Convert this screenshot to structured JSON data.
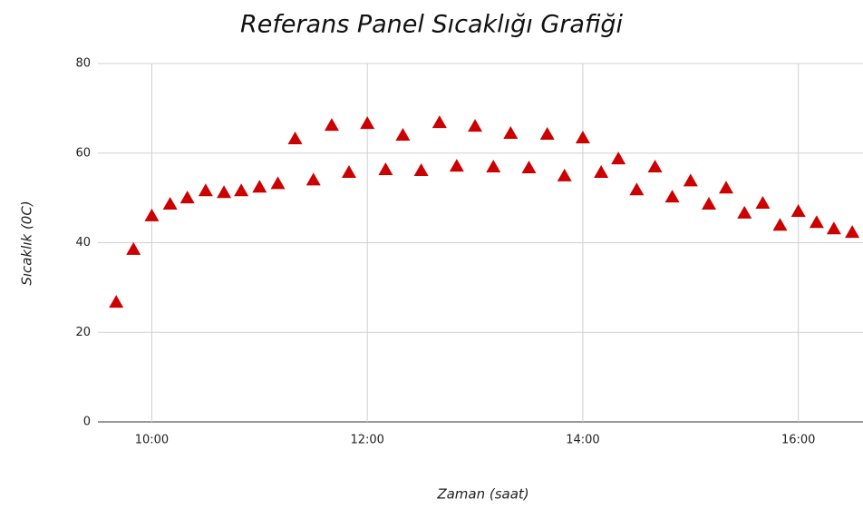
{
  "chart_data": {
    "type": "scatter",
    "title": "Referans Panel Sıcaklığı Grafiği",
    "x_label": "Zaman (saat)",
    "y_label": "Sıcaklık (0C)",
    "marker": "triangle",
    "color": "#cc0000",
    "grid": true,
    "xlim": [
      9.5,
      16.6
    ],
    "ylim": [
      0,
      80
    ],
    "xticks": [
      {
        "value": 10,
        "label": "10:00"
      },
      {
        "value": 12,
        "label": "12:00"
      },
      {
        "value": 14,
        "label": "14:00"
      },
      {
        "value": 16,
        "label": "16:00"
      }
    ],
    "yticks": [
      0,
      20,
      40,
      60,
      80
    ],
    "x": [
      9.67,
      9.83,
      10.0,
      10.17,
      10.33,
      10.5,
      10.67,
      10.83,
      11.0,
      11.17,
      11.33,
      11.5,
      11.67,
      11.83,
      12.0,
      12.17,
      12.33,
      12.5,
      12.67,
      12.83,
      13.0,
      13.17,
      13.33,
      13.5,
      13.67,
      13.83,
      14.0,
      14.17,
      14.33,
      14.5,
      14.67,
      14.83,
      15.0,
      15.17,
      15.33,
      15.5,
      15.67,
      15.83,
      16.0,
      16.17,
      16.33,
      16.5
    ],
    "values": [
      26.7,
      38.5,
      46,
      48.6,
      50,
      51.6,
      51.2,
      51.6,
      52.4,
      53.2,
      63.2,
      54,
      66.2,
      55.7,
      66.6,
      56.3,
      64,
      56.1,
      66.8,
      57.1,
      66,
      56.9,
      64.4,
      56.7,
      64.2,
      54.9,
      63.4,
      55.7,
      58.7,
      51.8,
      56.9,
      50.2,
      53.8,
      48.6,
      52.2,
      46.6,
      48.8,
      43.9,
      47,
      44.5,
      43.1,
      42.3
    ]
  }
}
